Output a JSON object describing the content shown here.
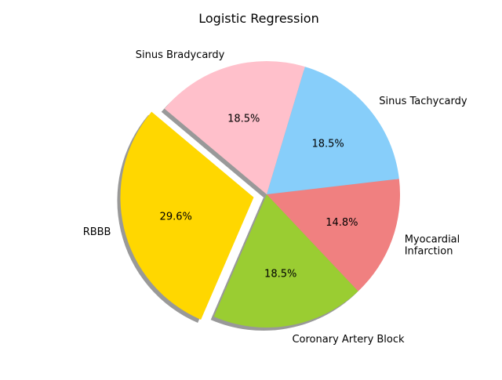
{
  "chart_data": {
    "type": "pie",
    "title": "Logistic Regression",
    "slices": [
      {
        "label": "RBBB",
        "value": 29.6,
        "pct_label": "29.6%",
        "color": "#FFD700",
        "explode": true
      },
      {
        "label": "Coronary Artery Block",
        "value": 18.5,
        "pct_label": "18.5%",
        "color": "#9ACD32",
        "explode": false
      },
      {
        "label": "Myocardial Infarction",
        "label_lines": [
          "Myocardial",
          "Infarction"
        ],
        "value": 14.8,
        "pct_label": "14.8%",
        "color": "#F08080",
        "explode": false
      },
      {
        "label": "Sinus Tachycardy",
        "value": 18.5,
        "pct_label": "18.5%",
        "color": "#87CEFA",
        "explode": false
      },
      {
        "label": "Sinus Bradycardy",
        "value": 18.5,
        "pct_label": "18.5%",
        "color": "#FFC0CB",
        "explode": false
      }
    ],
    "start_angle_deg": 140,
    "shadow": true,
    "legend": "none"
  }
}
